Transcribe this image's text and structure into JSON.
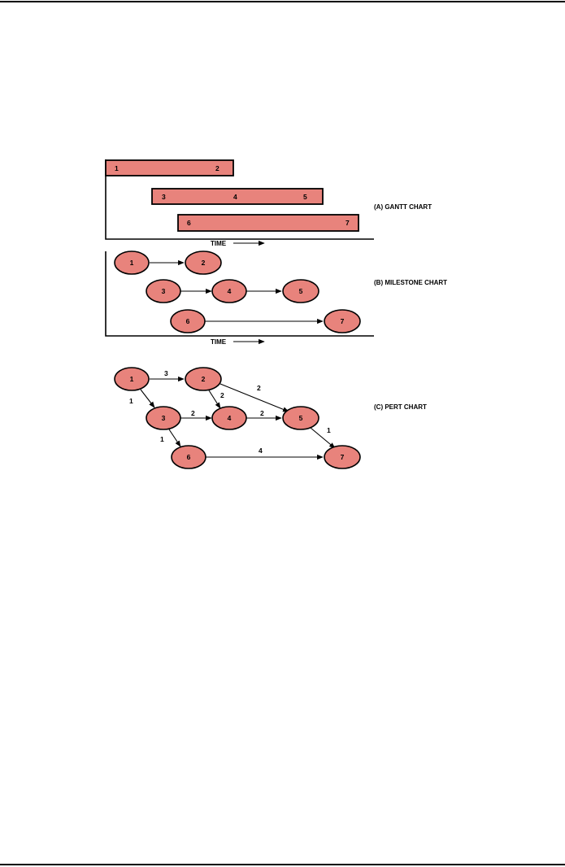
{
  "colors": {
    "fill": "#e8837c",
    "ink": "#000000",
    "background": "#ffffff"
  },
  "gantt": {
    "label": "(A) GANTT CHART",
    "axis_label": "TIME",
    "bars": [
      {
        "start": "1",
        "end": "2",
        "marks": []
      },
      {
        "start": "3",
        "end": "5",
        "marks": [
          "4"
        ]
      },
      {
        "start": "6",
        "end": "7",
        "marks": []
      }
    ]
  },
  "milestone": {
    "label": "(B) MILESTONE CHART",
    "axis_label": "TIME",
    "nodes": [
      "1",
      "2",
      "3",
      "4",
      "5",
      "6",
      "7"
    ],
    "edges": [
      [
        "1",
        "2"
      ],
      [
        "3",
        "4"
      ],
      [
        "4",
        "5"
      ],
      [
        "6",
        "7"
      ]
    ]
  },
  "pert": {
    "label": "(C) PERT CHART",
    "nodes": [
      "1",
      "2",
      "3",
      "4",
      "5",
      "6",
      "7"
    ],
    "edges": [
      {
        "from": "1",
        "to": "2",
        "weight": "3"
      },
      {
        "from": "1",
        "to": "3",
        "weight": "1"
      },
      {
        "from": "2",
        "to": "4",
        "weight": "2"
      },
      {
        "from": "2",
        "to": "5",
        "weight": "2"
      },
      {
        "from": "3",
        "to": "4",
        "weight": "2"
      },
      {
        "from": "3",
        "to": "6",
        "weight": "1"
      },
      {
        "from": "4",
        "to": "5",
        "weight": "2"
      },
      {
        "from": "5",
        "to": "7",
        "weight": "1"
      },
      {
        "from": "6",
        "to": "7",
        "weight": "4"
      }
    ]
  }
}
